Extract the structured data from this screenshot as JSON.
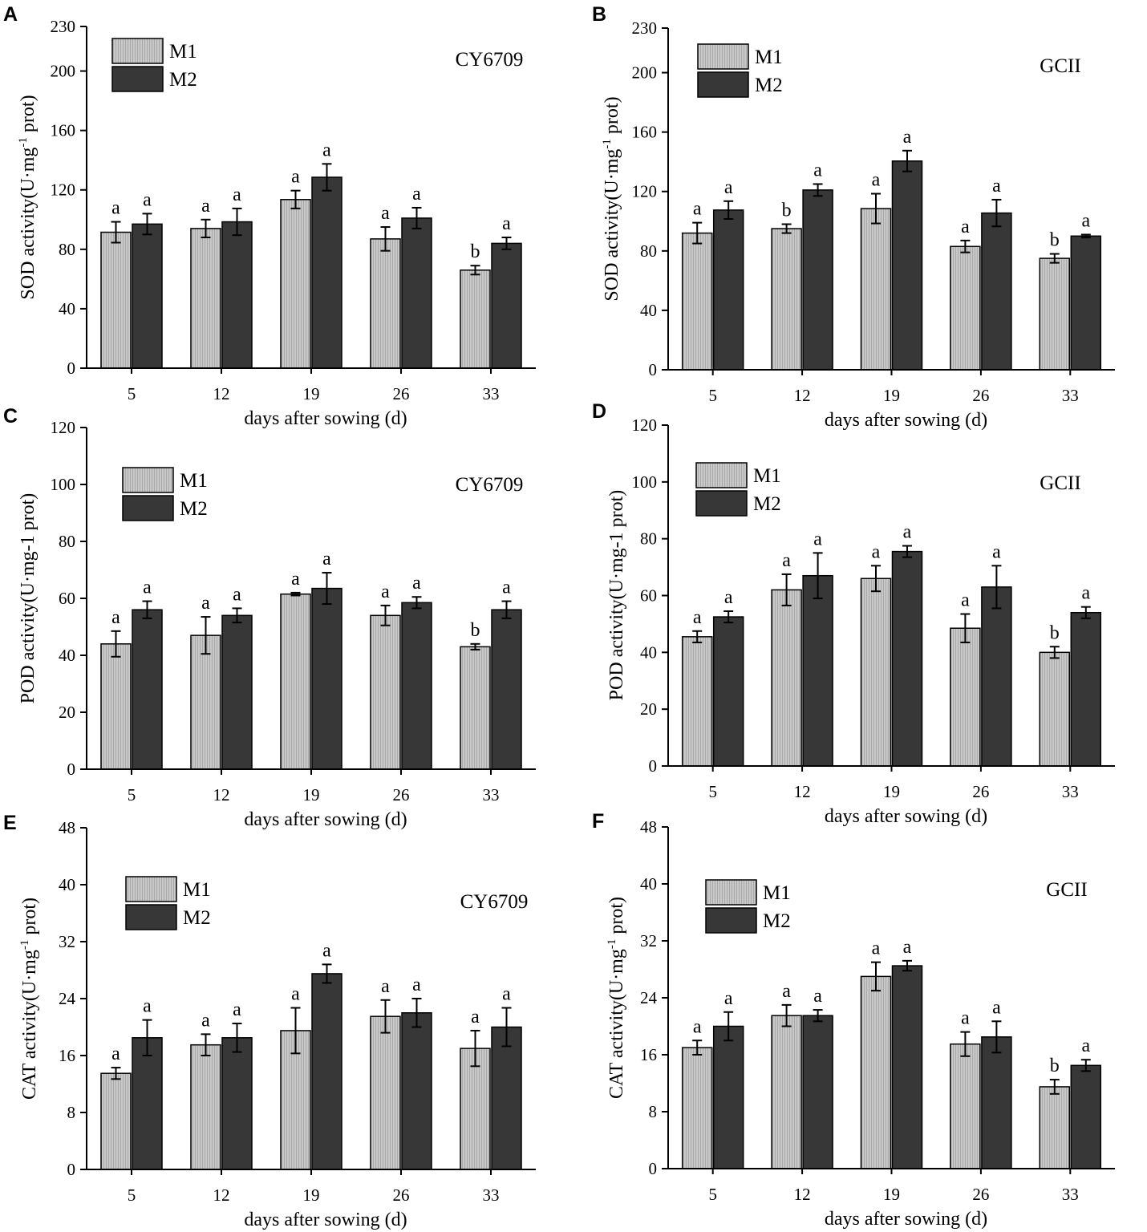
{
  "colors": {
    "m1": "#c3c3c3",
    "m1_stripe": "#a6a6a6",
    "m2": "#373737",
    "axis": "#000000"
  },
  "legend": {
    "m1": "M1",
    "m2": "M2"
  },
  "chart_data": [
    {
      "panel": "A",
      "type": "bar",
      "variety": "CY6709",
      "xlabel": "days after sowing (d)",
      "ylabel": "SOD activity(U·mg-1 prot)",
      "ylabel_parts": [
        "SOD activity(U·mg",
        "-1",
        " prot)"
      ],
      "categories": [
        "5",
        "12",
        "19",
        "26",
        "33"
      ],
      "ylim": [
        0,
        230
      ],
      "yticks": [
        "0",
        "40",
        "80",
        "120",
        "160",
        "200",
        "230"
      ],
      "series": [
        {
          "name": "M1",
          "values": [
            91.5,
            94,
            113.5,
            87,
            66
          ],
          "errors": [
            7,
            6,
            6,
            8,
            3
          ],
          "letters": [
            "a",
            "a",
            "a",
            "a",
            "b"
          ]
        },
        {
          "name": "M2",
          "values": [
            97,
            98.5,
            128.5,
            101,
            84
          ],
          "errors": [
            7,
            9,
            9,
            7,
            4
          ],
          "letters": [
            "a",
            "a",
            "a",
            "a",
            "a"
          ]
        }
      ]
    },
    {
      "panel": "B",
      "type": "bar",
      "variety": "GCII",
      "xlabel": "days after sowing (d)",
      "ylabel": "SOD activity(U·mg-1 prot)",
      "ylabel_parts": [
        "SOD activity(U·mg",
        "-1",
        " prot)"
      ],
      "categories": [
        "5",
        "12",
        "19",
        "26",
        "33"
      ],
      "ylim": [
        0,
        230
      ],
      "yticks": [
        "0",
        "40",
        "80",
        "120",
        "160",
        "200",
        "230"
      ],
      "series": [
        {
          "name": "M1",
          "values": [
            92,
            95,
            108.5,
            83,
            75
          ],
          "errors": [
            7,
            3,
            10,
            4,
            3
          ],
          "letters": [
            "a",
            "b",
            "a",
            "a",
            "b"
          ]
        },
        {
          "name": "M2",
          "values": [
            107.5,
            121,
            140.5,
            105.5,
            90
          ],
          "errors": [
            6,
            4,
            7,
            9,
            1
          ],
          "letters": [
            "a",
            "a",
            "a",
            "a",
            "a"
          ]
        }
      ]
    },
    {
      "panel": "C",
      "type": "bar",
      "variety": "CY6709",
      "xlabel": "days after sowing (d)",
      "ylabel": "POD activity(U·mg-1 prot)",
      "ylabel_parts": [
        "POD activity(U·mg-1 prot)",
        "",
        ""
      ],
      "categories": [
        "5",
        "12",
        "19",
        "26",
        "33"
      ],
      "ylim": [
        0,
        120
      ],
      "yticks": [
        "0",
        "20",
        "40",
        "60",
        "80",
        "100",
        "120"
      ],
      "series": [
        {
          "name": "M1",
          "values": [
            44,
            47,
            61.5,
            54,
            43
          ],
          "errors": [
            4.5,
            6.5,
            0.5,
            3.5,
            1
          ],
          "letters": [
            "a",
            "a",
            "a",
            "a",
            "b"
          ]
        },
        {
          "name": "M2",
          "values": [
            56,
            54,
            63.5,
            58.5,
            56
          ],
          "errors": [
            3,
            2.5,
            5.5,
            2,
            3
          ],
          "letters": [
            "a",
            "a",
            "a",
            "a",
            "a"
          ]
        }
      ]
    },
    {
      "panel": "D",
      "type": "bar",
      "variety": "GCII",
      "xlabel": "days after sowing (d)",
      "ylabel": "POD activity(U·mg-1 prot)",
      "ylabel_parts": [
        "POD activity(U·mg-1 prot)",
        "",
        ""
      ],
      "categories": [
        "5",
        "12",
        "19",
        "26",
        "33"
      ],
      "ylim": [
        0,
        120
      ],
      "yticks": [
        "0",
        "20",
        "40",
        "60",
        "80",
        "100",
        "120"
      ],
      "series": [
        {
          "name": "M1",
          "values": [
            45.5,
            62,
            66,
            48.5,
            40
          ],
          "errors": [
            2,
            5.5,
            4.5,
            5,
            2
          ],
          "letters": [
            "a",
            "a",
            "a",
            "a",
            "b"
          ]
        },
        {
          "name": "M2",
          "values": [
            52.5,
            67,
            75.5,
            63,
            54
          ],
          "errors": [
            2,
            8,
            2,
            7.5,
            2
          ],
          "letters": [
            "a",
            "a",
            "a",
            "a",
            "a"
          ]
        }
      ]
    },
    {
      "panel": "E",
      "type": "bar",
      "variety": "CY6709",
      "xlabel": "days after sowing (d)",
      "ylabel": "CAT activity(U·mg-1 prot)",
      "ylabel_parts": [
        "CAT activity(U·mg",
        "-1",
        " prot)"
      ],
      "categories": [
        "5",
        "12",
        "19",
        "26",
        "33"
      ],
      "ylim": [
        0,
        48
      ],
      "yticks": [
        "0",
        "8",
        "16",
        "24",
        "32",
        "40",
        "48"
      ],
      "series": [
        {
          "name": "M1",
          "values": [
            13.5,
            17.5,
            19.5,
            21.5,
            17
          ],
          "errors": [
            0.8,
            1.5,
            3.2,
            2.3,
            2.5
          ],
          "letters": [
            "a",
            "a",
            "a",
            "a",
            "a"
          ]
        },
        {
          "name": "M2",
          "values": [
            18.5,
            18.5,
            27.5,
            22,
            20
          ],
          "errors": [
            2.5,
            2,
            1.3,
            2,
            2.7
          ],
          "letters": [
            "a",
            "a",
            "a",
            "a",
            "a"
          ]
        }
      ]
    },
    {
      "panel": "F",
      "type": "bar",
      "variety": "GCII",
      "xlabel": "days after sowing (d)",
      "ylabel": "CAT activity(U·mg-1 prot)",
      "ylabel_parts": [
        "CAT activity(U·mg",
        "-1",
        " prot)"
      ],
      "categories": [
        "5",
        "12",
        "19",
        "26",
        "33"
      ],
      "ylim": [
        0,
        48
      ],
      "yticks": [
        "0",
        "8",
        "16",
        "24",
        "32",
        "40",
        "48"
      ],
      "series": [
        {
          "name": "M1",
          "values": [
            17,
            21.5,
            27,
            17.5,
            11.5
          ],
          "errors": [
            1,
            1.5,
            2,
            1.7,
            1
          ],
          "letters": [
            "a",
            "a",
            "a",
            "a",
            "b"
          ]
        },
        {
          "name": "M2",
          "values": [
            20,
            21.5,
            28.5,
            18.5,
            14.5
          ],
          "errors": [
            2,
            0.8,
            0.7,
            2.2,
            0.8
          ],
          "letters": [
            "a",
            "a",
            "a",
            "a",
            "a"
          ]
        }
      ]
    }
  ]
}
